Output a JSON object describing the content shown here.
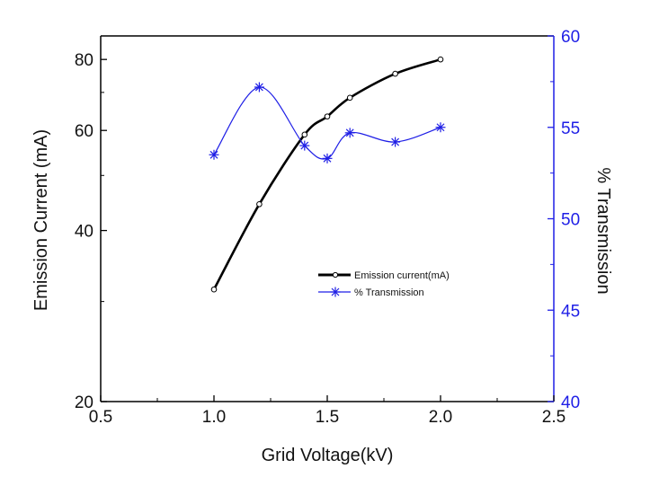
{
  "chart_data": {
    "type": "line",
    "title": "",
    "xlabel": "Grid Voltage(kV)",
    "ylabel_left": "Emission Current (mA)",
    "ylabel_right": "% Transmission",
    "xlim": [
      0.5,
      2.5
    ],
    "x_ticks": [
      "0.5",
      "1.0",
      "1.5",
      "2.0",
      "2.5"
    ],
    "ylim_left": [
      20,
      88
    ],
    "y_scale_left": "log",
    "y_ticks_left": [
      "20",
      "40",
      "60",
      "80"
    ],
    "ylim_right": [
      40,
      60
    ],
    "y_ticks_right": [
      "40",
      "45",
      "50",
      "55",
      "60"
    ],
    "grid": false,
    "legend_position": "center-right",
    "series": [
      {
        "name": "Emission current(mA)",
        "axis": "left",
        "color": "#000000",
        "marker": "open-circle",
        "x": [
          1.0,
          1.2,
          1.4,
          1.5,
          1.6,
          1.8,
          2.0
        ],
        "y": [
          31.5,
          44.5,
          59,
          63.5,
          68.5,
          75.5,
          80
        ]
      },
      {
        "name": "% Transmission",
        "axis": "right",
        "color": "#1f1fe6",
        "marker": "asterisk",
        "x": [
          1.0,
          1.2,
          1.4,
          1.5,
          1.6,
          1.8,
          2.0
        ],
        "y": [
          53.5,
          57.2,
          54.0,
          53.3,
          54.7,
          54.2,
          55.0
        ]
      }
    ]
  }
}
